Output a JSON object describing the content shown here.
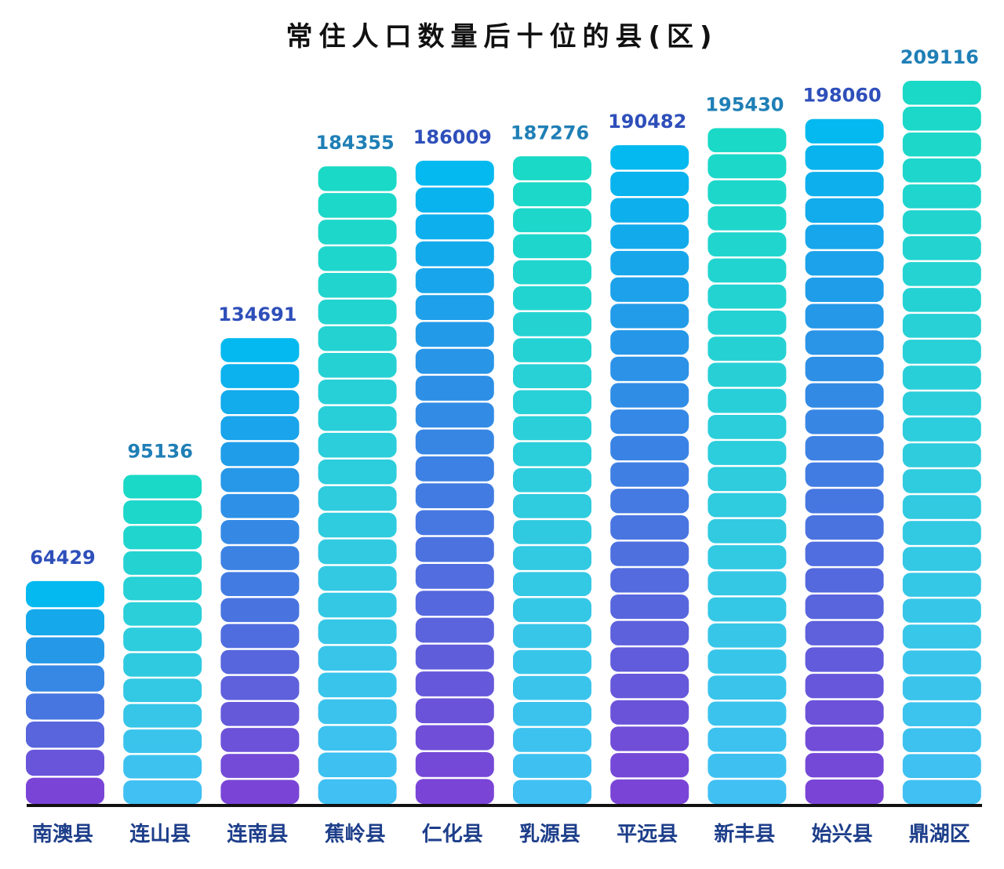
{
  "chart_data": {
    "type": "bar",
    "title": "常住人口数量后十位的县(区)",
    "xlabel": "",
    "ylabel": "",
    "ylim": [
      0,
      209116
    ],
    "grid": false,
    "legend": "none",
    "categories": [
      "南澳县",
      "连山县",
      "连南县",
      "蕉岭县",
      "仁化县",
      "乳源县",
      "平远县",
      "新丰县",
      "始兴县",
      "鼎湖区"
    ],
    "values": [
      64429,
      95136,
      134691,
      184355,
      186009,
      187276,
      190482,
      195430,
      198060,
      209116
    ],
    "value_labels": [
      "64429",
      "95136",
      "134691",
      "184355",
      "186009",
      "187276",
      "190482",
      "195430",
      "198060",
      "209116"
    ],
    "bar_styles": [
      "blue-purple",
      "teal",
      "blue-purple",
      "teal-cyan",
      "blue-purple",
      "teal-cyan",
      "blue-purple",
      "teal-cyan",
      "blue-purple",
      "teal-cyan"
    ],
    "colors": {
      "blue_top": "#04b9ef",
      "purple_bottom": "#7a44d6",
      "teal_top": "#1ad9c6",
      "cyan_bottom": "#40c0f3",
      "label_blue": "#2e4fba",
      "label_teal": "#1f7fb6",
      "category_text": "#1d3e8a",
      "axis": "#111111"
    }
  }
}
